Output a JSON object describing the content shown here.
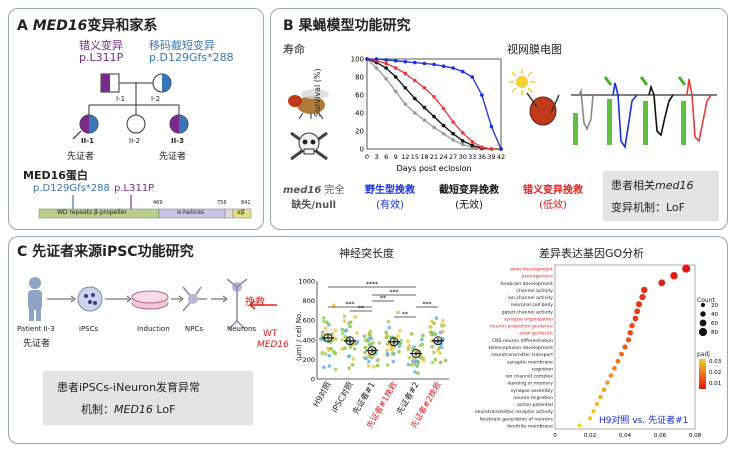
{
  "panel_a": {
    "title_prefix": "A ",
    "title_gene": "MED16",
    "title_suffix": "变异和家系",
    "missense_label": "错义变异",
    "missense_variant": "p.L311P",
    "truncating_label": "移码截短变异",
    "truncating_variant": "p.D129Gfs*288",
    "gen1_1": "I-1",
    "gen1_2": "I-2",
    "gen2_1": "II-1",
    "gen2_2": "II-2",
    "gen2_3": "II-3",
    "proband": "先证者",
    "protein_title": "MED16蛋白",
    "protein_trunc": "p.D129Gfs*288",
    "protein_missense": "p.L311P",
    "domain_wd": "WD repeats β-propeller",
    "domain_helix": "α-helices",
    "domain_ab": "αβ",
    "pos_469": "469",
    "pos_756": "756",
    "pos_841": "841"
  },
  "panel_b": {
    "title": "B 果蝇模型功能研究",
    "lifespan_label": "寿命",
    "erg_label": "视网膜电图",
    "chart_ylabel": "Survival (%)",
    "chart_xlabel": "Days post eclosion",
    "cond1_gene": "med16",
    "cond1_rest": " 完全",
    "cond1_line2": "缺失/null",
    "cond2_line1": "野生型挽救",
    "cond2_line2": "(有效)",
    "cond3_line1": "截短变异挽救",
    "cond3_line2": "(无效)",
    "cond4_line1": "错义变异挽救",
    "cond4_line2": "(低效)",
    "note_line1_prefix": "患者相关",
    "note_gene": "med16",
    "note_line2": "变异机制：LoF"
  },
  "panel_c": {
    "title": "C 先证者来源iPSC功能研究",
    "step_patient": "Patient II-3",
    "step_proband": "先证者",
    "step_ipscs": "iPSCs",
    "step_induction": "Induction",
    "step_npcs": "NPCs",
    "step_neurons": "Neurons",
    "rescue_label": "挽救",
    "wt_label": "WT",
    "wt_gene": "MED16",
    "note_line1": "患者iPSCs-iNeuron发育异常",
    "note_line2_prefix": "机制：",
    "note_gene": "MED16",
    "note_line2_suffix": " LoF",
    "neurite_title": "神经突长度",
    "neurite_ylabel": "(μm) / cell No.",
    "go_title": "差异表达基因GO分析",
    "go_legend_count": "Count",
    "go_legend_padj": "padj",
    "go_compare": "H9对照 vs. 先证者#1"
  },
  "chart_data": [
    {
      "type": "line",
      "title": "",
      "xlabel": "Days post eclosion",
      "ylabel": "Survival (%)",
      "ylim": [
        0,
        100
      ],
      "xlim": [
        0,
        42
      ],
      "x": [
        0,
        3,
        6,
        9,
        12,
        15,
        18,
        21,
        24,
        27,
        30,
        33,
        36,
        39,
        42
      ],
      "xtick_labels": [
        "0",
        "3",
        "6",
        "9",
        "12",
        "15",
        "18",
        "21",
        "24",
        "27",
        "30",
        "33",
        "36",
        "39",
        "42"
      ],
      "yticks": [
        "0",
        "20",
        "40",
        "60",
        "80",
        "100"
      ],
      "series": [
        {
          "name": "wild-type rescue",
          "color": "#1a2fe0",
          "values": [
            100,
            100,
            99,
            98,
            97,
            96,
            95,
            94,
            92,
            90,
            86,
            80,
            60,
            25,
            0
          ]
        },
        {
          "name": "missense rescue",
          "color": "#e83a3a",
          "values": [
            100,
            98,
            95,
            90,
            84,
            76,
            68,
            58,
            45,
            30,
            18,
            8,
            2,
            0,
            0
          ]
        },
        {
          "name": "truncating rescue",
          "color": "#111111",
          "values": [
            100,
            96,
            90,
            80,
            68,
            56,
            46,
            36,
            26,
            17,
            9,
            4,
            1,
            0,
            0
          ]
        },
        {
          "name": "null",
          "color": "#9a9a9a",
          "values": [
            100,
            90,
            78,
            64,
            50,
            40,
            32,
            24,
            17,
            10,
            5,
            2,
            0,
            0,
            0
          ]
        }
      ]
    },
    {
      "type": "scatter",
      "title": "神经突长度",
      "ylabel": "(μm) / cell No.",
      "ylim": [
        0,
        1000
      ],
      "yticks": [
        "0",
        "200",
        "400",
        "600",
        "800",
        "1000"
      ],
      "categories": [
        "H9对照",
        "iPSC对照",
        "先证者#1",
        "先证者#1挽救",
        "先证者#2",
        "先证者#2挽救"
      ],
      "category_colors": [
        "#222222",
        "#222222",
        "#222222",
        "#e02020",
        "#222222",
        "#e02020"
      ],
      "means": [
        420,
        390,
        290,
        380,
        260,
        390
      ],
      "sem": [
        30,
        30,
        25,
        30,
        25,
        30
      ],
      "significance": [
        {
          "from": 0,
          "to": 2,
          "label": "***"
        },
        {
          "from": 2,
          "to": 3,
          "label": "**"
        },
        {
          "from": 1,
          "to": 2,
          "label": "**"
        },
        {
          "from": 2,
          "to": 4,
          "label": "***"
        },
        {
          "from": 3,
          "to": 4,
          "label": "**"
        },
        {
          "from": 4,
          "to": 5,
          "label": "***"
        },
        {
          "from": 0,
          "to": 4,
          "label": "****"
        }
      ]
    },
    {
      "type": "scatter",
      "title": "差异表达基因GO分析",
      "xlim": [
        0,
        0.08
      ],
      "xticks": [
        "0",
        "0.02",
        "0.04",
        "0.06",
        "0.08"
      ],
      "count_legend": [
        "20",
        "40",
        "60",
        "80"
      ],
      "padj_legend": [
        "0.03",
        "0.02",
        "0.01"
      ],
      "terms": [
        {
          "label": "axon development",
          "x": 0.075,
          "count": 80,
          "padj": 0.001,
          "highlight": true
        },
        {
          "label": "axonogenesis",
          "x": 0.068,
          "count": 70,
          "padj": 0.002,
          "highlight": true
        },
        {
          "label": "forebrain development",
          "x": 0.061,
          "count": 60,
          "padj": 0.003,
          "highlight": false
        },
        {
          "label": "channel activity",
          "x": 0.051,
          "count": 55,
          "padj": 0.006,
          "highlight": false
        },
        {
          "label": "ion channel activity",
          "x": 0.05,
          "count": 52,
          "padj": 0.006,
          "highlight": false
        },
        {
          "label": "neuronal cell body",
          "x": 0.048,
          "count": 50,
          "padj": 0.007,
          "highlight": false
        },
        {
          "label": "gated channel activity",
          "x": 0.047,
          "count": 45,
          "padj": 0.008,
          "highlight": false
        },
        {
          "label": "synapse organization",
          "x": 0.046,
          "count": 45,
          "padj": 0.008,
          "highlight": true
        },
        {
          "label": "neuron projection guidance",
          "x": 0.044,
          "count": 40,
          "padj": 0.01,
          "highlight": true
        },
        {
          "label": "axon guidance",
          "x": 0.043,
          "count": 40,
          "padj": 0.01,
          "highlight": true
        },
        {
          "label": "CNS neuron differentiation",
          "x": 0.042,
          "count": 35,
          "padj": 0.012,
          "highlight": false
        },
        {
          "label": "telencephalon development",
          "x": 0.04,
          "count": 35,
          "padj": 0.014,
          "highlight": false
        },
        {
          "label": "neurotransmitter transport",
          "x": 0.038,
          "count": 30,
          "padj": 0.016,
          "highlight": false
        },
        {
          "label": "synaptic membrane",
          "x": 0.036,
          "count": 30,
          "padj": 0.018,
          "highlight": false
        },
        {
          "label": "cognition",
          "x": 0.034,
          "count": 28,
          "padj": 0.02,
          "highlight": false
        },
        {
          "label": "ion channel complex",
          "x": 0.032,
          "count": 28,
          "padj": 0.022,
          "highlight": false
        },
        {
          "label": "learning or memory",
          "x": 0.03,
          "count": 26,
          "padj": 0.024,
          "highlight": false
        },
        {
          "label": "synapse assembly",
          "x": 0.028,
          "count": 25,
          "padj": 0.026,
          "highlight": false
        },
        {
          "label": "neuron migration",
          "x": 0.026,
          "count": 24,
          "padj": 0.028,
          "highlight": false
        },
        {
          "label": "action potential",
          "x": 0.024,
          "count": 22,
          "padj": 0.029,
          "highlight": false
        },
        {
          "label": "neurotransmitter receptor activity",
          "x": 0.022,
          "count": 20,
          "padj": 0.03,
          "highlight": false
        },
        {
          "label": "forebrain generation of neurons",
          "x": 0.02,
          "count": 18,
          "padj": 0.032,
          "highlight": false
        },
        {
          "label": "dendrite membrane",
          "x": 0.014,
          "count": 15,
          "padj": 0.034,
          "highlight": false
        }
      ]
    }
  ]
}
